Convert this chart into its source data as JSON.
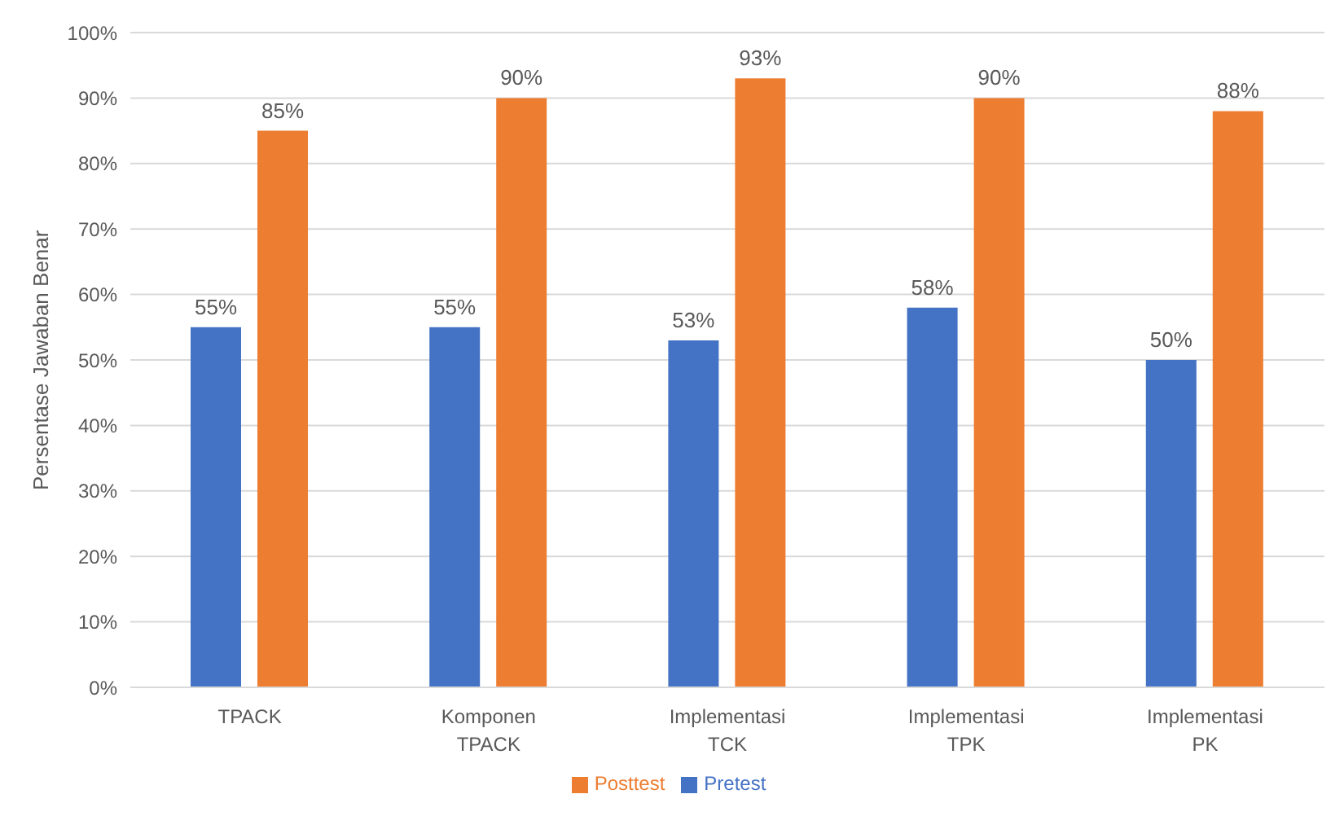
{
  "chart_data": {
    "type": "bar",
    "ylabel": "Persentase Jawaban Benar",
    "categories": [
      "TPACK",
      "Komponen TPACK",
      "Implementasi TCK",
      "Implementasi TPK",
      "Implementasi PK"
    ],
    "series": [
      {
        "name": "Pretest",
        "color": "#4472c4",
        "values": [
          55,
          55,
          53,
          58,
          50
        ],
        "value_labels": [
          "55%",
          "55%",
          "53%",
          "58%",
          "50%"
        ]
      },
      {
        "name": "Posttest",
        "color": "#ed7d31",
        "values": [
          85,
          90,
          93,
          90,
          88
        ],
        "value_labels": [
          "85%",
          "90%",
          "93%",
          "90%",
          "88%"
        ]
      }
    ],
    "ylim": [
      0,
      100
    ],
    "yticks": [
      {
        "value": 0,
        "label": "0%"
      },
      {
        "value": 10,
        "label": "10%"
      },
      {
        "value": 20,
        "label": "20%"
      },
      {
        "value": 30,
        "label": "30%"
      },
      {
        "value": 40,
        "label": "40%"
      },
      {
        "value": 50,
        "label": "50%"
      },
      {
        "value": 60,
        "label": "60%"
      },
      {
        "value": 70,
        "label": "70%"
      },
      {
        "value": 80,
        "label": "80%"
      },
      {
        "value": 90,
        "label": "90%"
      },
      {
        "value": 100,
        "label": "100%"
      }
    ],
    "grid": "y",
    "legend": "bottom"
  }
}
